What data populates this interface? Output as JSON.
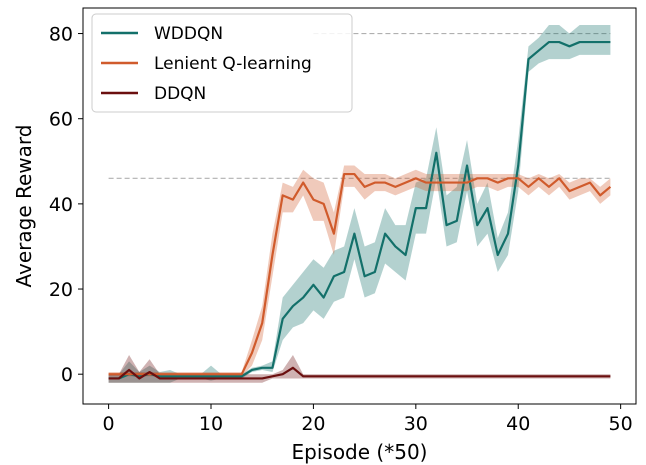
{
  "chart_data": {
    "type": "line",
    "title": "",
    "xlabel": "Episode (*50)",
    "ylabel": "Average Reward",
    "xlim": [
      -2.5,
      51.5
    ],
    "ylim": [
      -7,
      86
    ],
    "xticks": [
      0,
      10,
      20,
      30,
      40,
      50
    ],
    "yticks": [
      0,
      20,
      40,
      60,
      80
    ],
    "grid": false,
    "legend_position": "top-left",
    "reference_lines": [
      {
        "y": 80,
        "x_start": 20,
        "x_end": 49,
        "style": "dashed",
        "color": "#b0b0b0"
      },
      {
        "y": 46,
        "x_start": 0,
        "x_end": 49,
        "style": "dashed",
        "color": "#b0b0b0"
      }
    ],
    "x": [
      0,
      1,
      2,
      3,
      4,
      5,
      6,
      7,
      8,
      9,
      10,
      11,
      12,
      13,
      14,
      15,
      16,
      17,
      18,
      19,
      20,
      21,
      22,
      23,
      24,
      25,
      26,
      27,
      28,
      29,
      30,
      31,
      32,
      33,
      34,
      35,
      36,
      37,
      38,
      39,
      40,
      41,
      42,
      43,
      44,
      45,
      46,
      47,
      48,
      49
    ],
    "series": [
      {
        "name": "WDDQN",
        "color": "#13706a",
        "mean": [
          -1,
          -1,
          0,
          -0.5,
          0,
          -0.5,
          -0.5,
          -0.5,
          -0.5,
          -0.5,
          -0.5,
          -0.5,
          -0.5,
          -0.5,
          1,
          1.5,
          1.5,
          13,
          16,
          18,
          21,
          18,
          23,
          24,
          33,
          23,
          24,
          33,
          30,
          28,
          39,
          39,
          52,
          35,
          36,
          49,
          35,
          39,
          28,
          33,
          49,
          74,
          76,
          78,
          78,
          77,
          78,
          78,
          78,
          78
        ],
        "upper": [
          0,
          0,
          3,
          0.5,
          2,
          0.5,
          1,
          0,
          0,
          0,
          2,
          0,
          0,
          0,
          1.5,
          2,
          3,
          18,
          21,
          24,
          27,
          25,
          29,
          30,
          39,
          30,
          31,
          39,
          35,
          35,
          45,
          46,
          58,
          42,
          44,
          55,
          40,
          45,
          32,
          38,
          55,
          77,
          79,
          82,
          82,
          80,
          82,
          82,
          82,
          82
        ],
        "lower": [
          -2,
          -2,
          -2,
          -2,
          -2,
          -2,
          -2,
          -1,
          -1,
          -1,
          -1.5,
          -1,
          -1,
          -1,
          0.5,
          1,
          0.5,
          8,
          11,
          12,
          15,
          13,
          17,
          18,
          27,
          18,
          19,
          26,
          24,
          22,
          33,
          33,
          46,
          30,
          31,
          43,
          30,
          33,
          24,
          28,
          43,
          71,
          73,
          74,
          74,
          74,
          75,
          75,
          75,
          75
        ]
      },
      {
        "name": "Lenient Q-learning",
        "color": "#d05b2c",
        "mean": [
          0,
          0,
          0,
          0,
          0,
          0,
          0,
          0,
          0,
          0,
          0,
          0,
          0,
          0,
          5,
          12,
          28,
          42,
          41,
          45,
          41,
          40,
          33,
          47,
          47,
          44,
          45,
          45,
          44,
          45,
          46,
          45,
          45,
          45,
          45,
          45,
          46,
          46,
          45,
          46,
          46,
          44,
          46,
          44,
          46,
          43,
          44,
          45,
          42,
          44
        ],
        "upper": [
          0.5,
          0.5,
          0.5,
          0.5,
          0.5,
          0.5,
          0.5,
          0.5,
          0.5,
          0.5,
          0.5,
          0.5,
          0.5,
          0.5,
          8,
          16,
          33,
          45,
          44,
          48,
          46,
          45,
          38,
          49,
          49,
          47,
          47,
          47,
          46,
          47,
          48,
          47,
          47,
          47,
          47,
          47,
          47,
          47,
          47,
          47,
          47,
          46,
          47,
          46,
          47,
          45,
          46,
          46,
          44,
          46
        ],
        "lower": [
          -0.5,
          -0.5,
          -0.5,
          -0.5,
          -0.5,
          -0.5,
          -0.5,
          -0.5,
          -0.5,
          -0.5,
          -0.5,
          -0.5,
          -0.5,
          -0.5,
          2,
          8,
          23,
          38,
          38,
          42,
          36,
          36,
          28,
          44,
          44,
          41,
          43,
          43,
          42,
          43,
          44,
          43,
          43,
          43,
          43,
          43,
          44,
          44,
          43,
          44,
          44,
          42,
          44,
          42,
          44,
          41,
          42,
          43,
          40,
          42
        ]
      },
      {
        "name": "DDQN",
        "color": "#6b0f0f",
        "mean": [
          -1,
          -1,
          1,
          -1,
          0.5,
          -1,
          -1,
          -1,
          -1,
          -1,
          -1,
          -1,
          -1,
          -1,
          -1,
          -1,
          -0.5,
          0,
          1.5,
          -0.5,
          -0.5,
          -0.5,
          -0.5,
          -0.5,
          -0.5,
          -0.5,
          -0.5,
          -0.5,
          -0.5,
          -0.5,
          -0.5,
          -0.5,
          -0.5,
          -0.5,
          -0.5,
          -0.5,
          -0.5,
          -0.5,
          -0.5,
          -0.5,
          -0.5,
          -0.5,
          -0.5,
          -0.5,
          -0.5,
          -0.5,
          -0.5,
          -0.5,
          -0.5,
          -0.5
        ],
        "upper": [
          0,
          0,
          4.5,
          0.5,
          3.5,
          0,
          0,
          0,
          0,
          0,
          0,
          0,
          0,
          0,
          0,
          0,
          0,
          1,
          4.5,
          0,
          0,
          0,
          0,
          0,
          0,
          0,
          0,
          0,
          0,
          0,
          0,
          0,
          0,
          0,
          0,
          0,
          0,
          0,
          0,
          0,
          0,
          0,
          0,
          0,
          0,
          0,
          0,
          0,
          0,
          0
        ],
        "lower": [
          -2,
          -2,
          -2,
          -2,
          -2,
          -2,
          -2,
          -2,
          -2,
          -2,
          -2,
          -2,
          -2,
          -2,
          -2,
          -2,
          -1,
          -1,
          -1,
          -1,
          -1,
          -1,
          -1,
          -1,
          -1,
          -1,
          -1,
          -1,
          -1,
          -1,
          -1,
          -1,
          -1,
          -1,
          -1,
          -1,
          -1,
          -1,
          -1,
          -1,
          -1,
          -1,
          -1,
          -1,
          -1,
          -1,
          -1,
          -1,
          -1,
          -1
        ]
      }
    ]
  }
}
